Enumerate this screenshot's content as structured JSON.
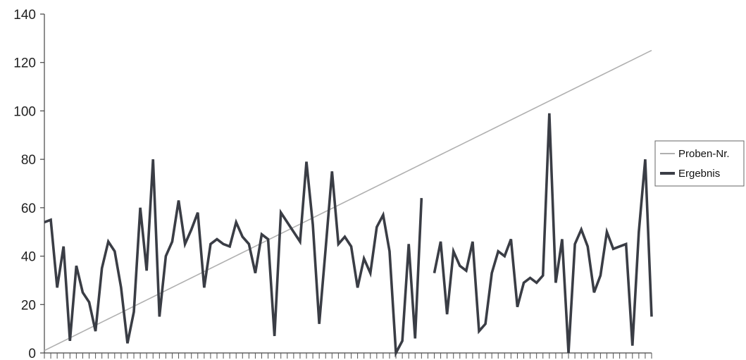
{
  "chart_data": {
    "type": "line",
    "title": "",
    "xlabel": "",
    "ylabel": "",
    "ylim": [
      0,
      140
    ],
    "yticks": [
      "0",
      "20",
      "40",
      "60",
      "80",
      "100",
      "120",
      "140"
    ],
    "grid": false,
    "legend_position": "right",
    "series": [
      {
        "name": "Proben-Nr.",
        "color": "#b0b0b0",
        "values": [
          1,
          2,
          3,
          4,
          5,
          6,
          7,
          8,
          9,
          10,
          11,
          12,
          13,
          14,
          15,
          16,
          17,
          18,
          19,
          20,
          21,
          22,
          23,
          24,
          25,
          26,
          27,
          28,
          29,
          30,
          31,
          32,
          33,
          34,
          35,
          36,
          37,
          38,
          39,
          40,
          41,
          42,
          43,
          44,
          45,
          46,
          47,
          48,
          49,
          50,
          51,
          52,
          53,
          54,
          55,
          56,
          57,
          58,
          59,
          60,
          61,
          62,
          63,
          64,
          65,
          66,
          67,
          68,
          69,
          70,
          71,
          72,
          73,
          74,
          75,
          76,
          77,
          78,
          79,
          80,
          81,
          82,
          83,
          84,
          85,
          86,
          87,
          88,
          89,
          90,
          91,
          92,
          93,
          94,
          95,
          96,
          97,
          98,
          99,
          100,
          101,
          102,
          103,
          104,
          105,
          106,
          107,
          108,
          109,
          110,
          111,
          112,
          113,
          114,
          115,
          116,
          117,
          118,
          119,
          120,
          121,
          122,
          123,
          124,
          125
        ]
      },
      {
        "name": "Ergebnis",
        "color": "#3a3d45",
        "values": [
          54,
          55,
          27,
          44,
          5,
          36,
          25,
          21,
          9,
          35,
          46,
          42,
          27,
          4,
          17,
          60,
          34,
          80,
          15,
          40,
          46,
          63,
          45,
          51,
          58,
          27,
          45,
          47,
          45,
          44,
          54,
          48,
          45,
          33,
          49,
          47,
          7,
          58,
          54,
          50,
          46,
          79,
          53,
          12,
          43,
          75,
          45,
          48,
          44,
          27,
          39,
          33,
          52,
          57,
          42,
          0,
          5,
          45,
          6,
          64,
          null,
          33,
          46,
          16,
          42,
          36,
          34,
          46,
          9,
          12,
          33,
          42,
          40,
          47,
          19,
          29,
          31,
          29,
          32,
          99,
          29,
          47,
          0,
          45,
          51,
          44,
          25,
          32,
          50,
          43,
          44,
          45,
          3,
          50,
          80,
          15
        ]
      }
    ]
  }
}
